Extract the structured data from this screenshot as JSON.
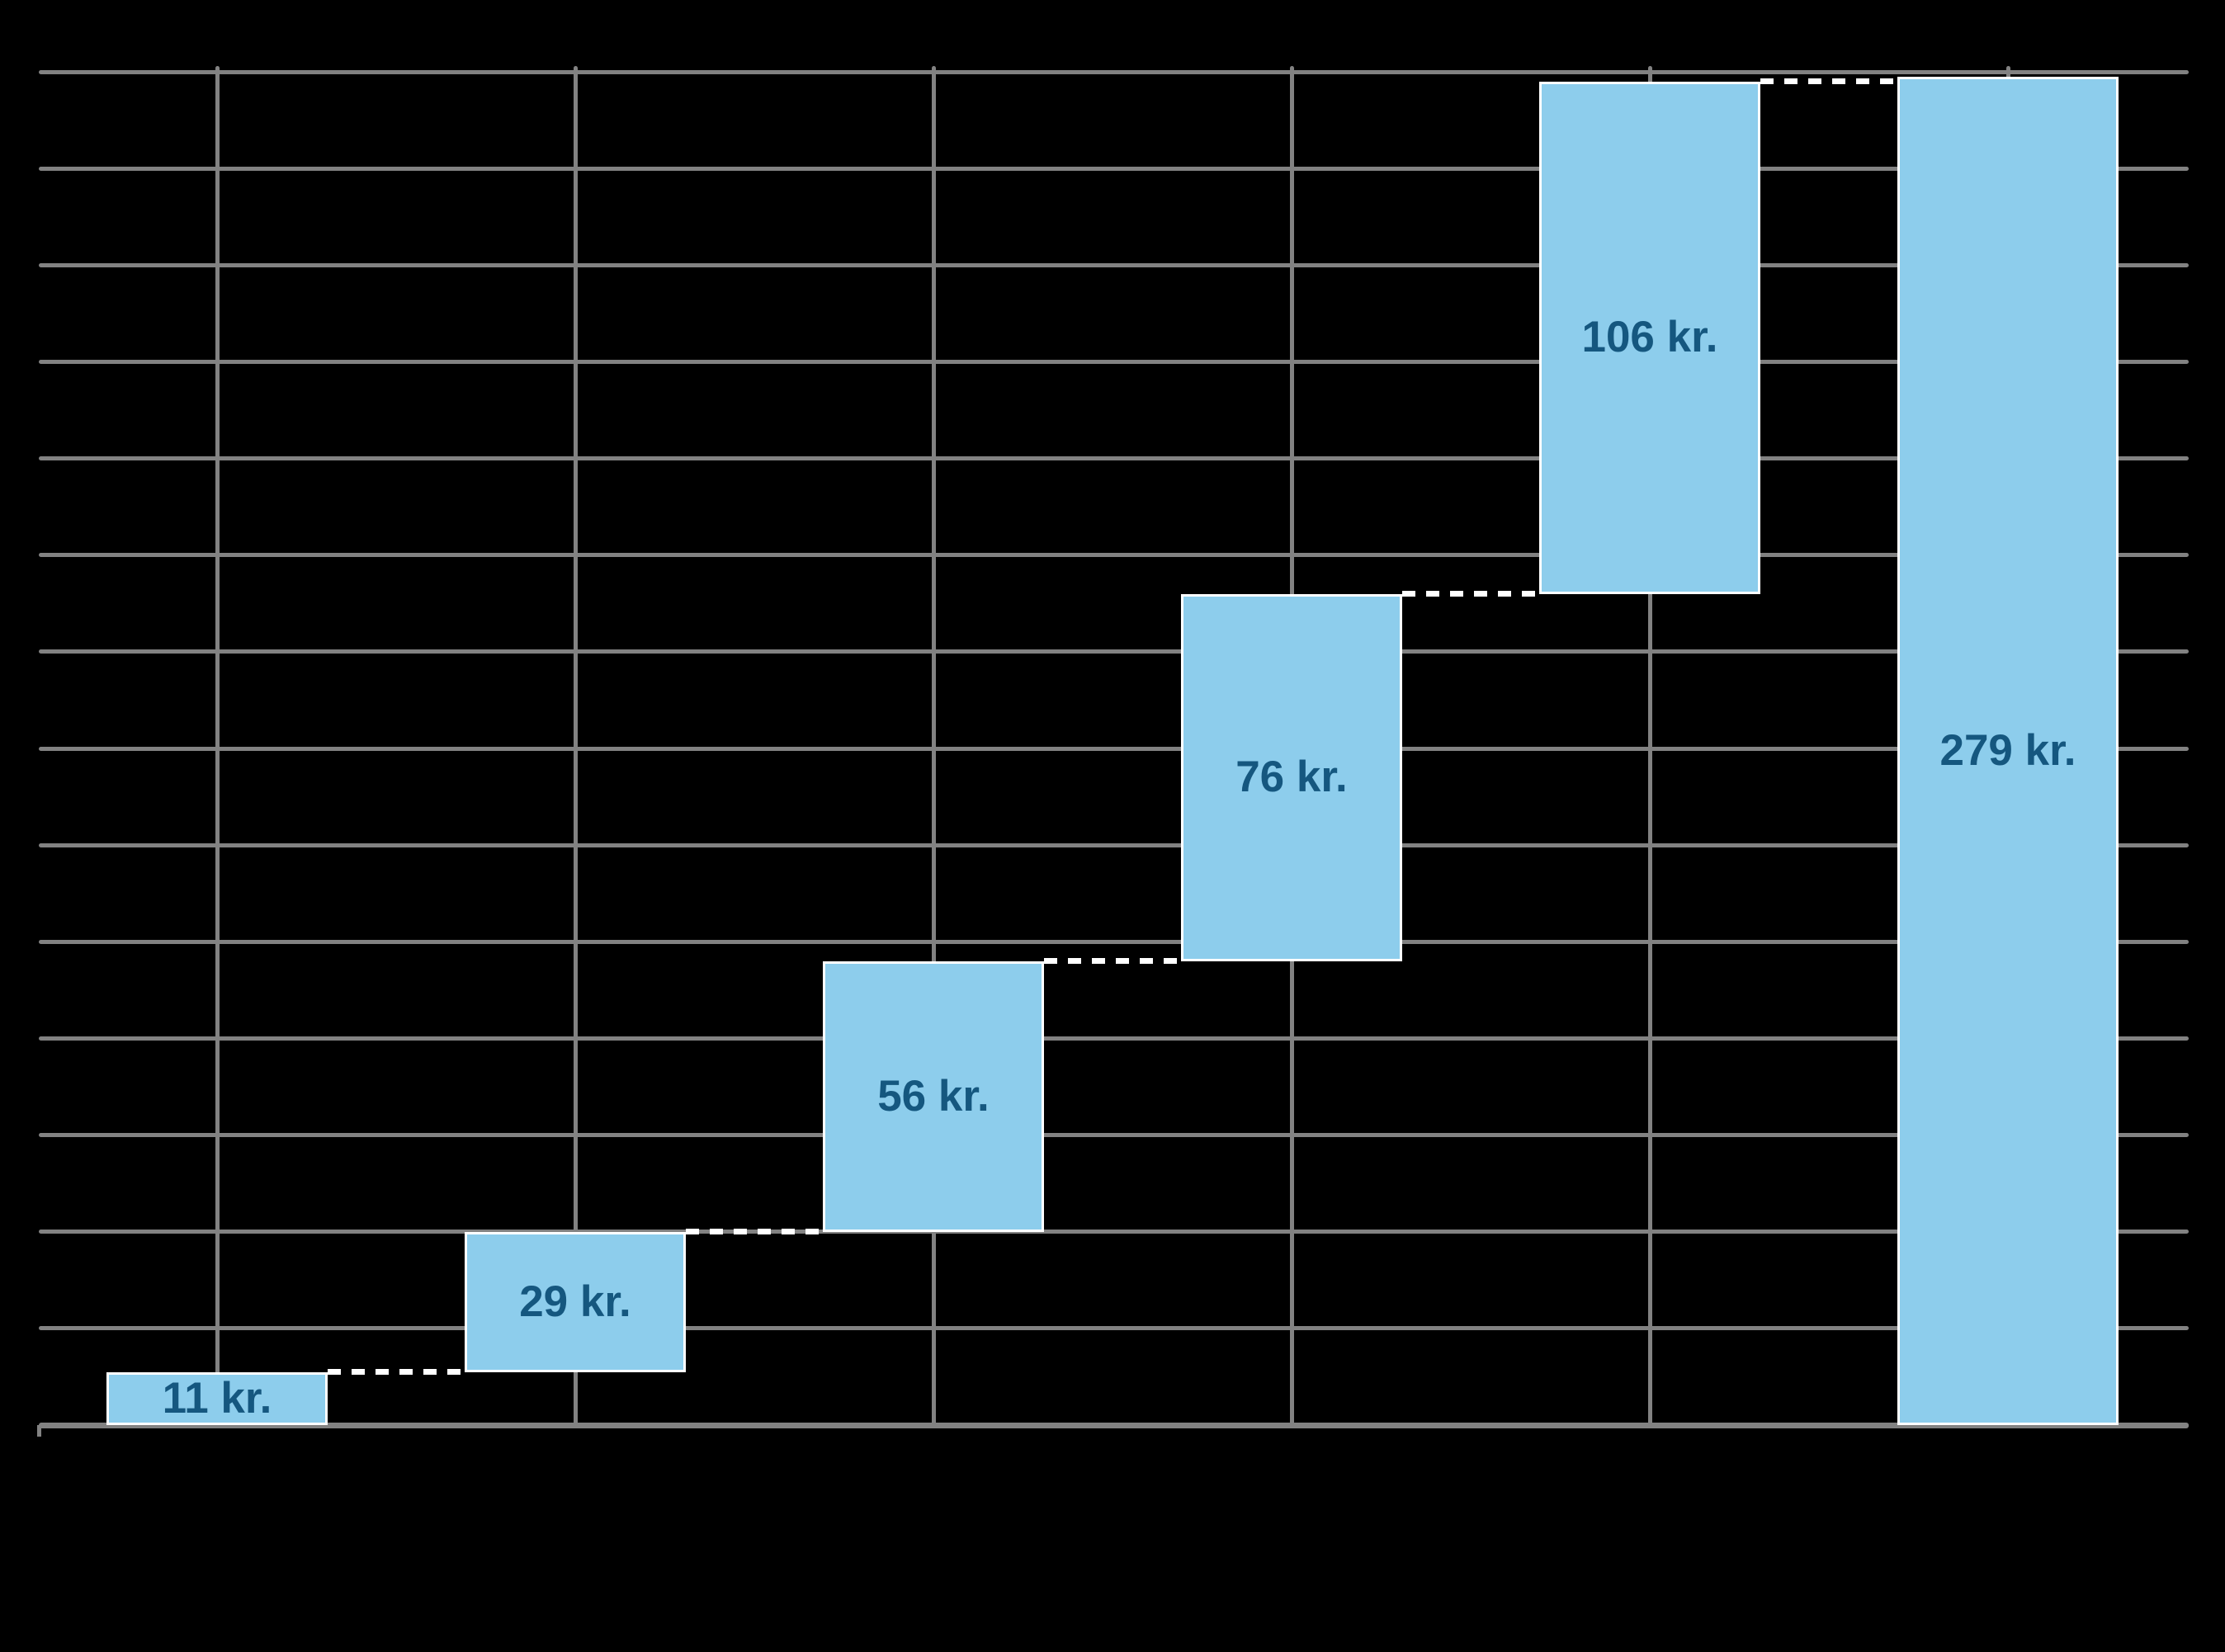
{
  "chart_data": {
    "type": "bar",
    "subtype": "waterfall",
    "unit": "kr.",
    "series": [
      {
        "label": "11 kr.",
        "value": 11,
        "kind": "step"
      },
      {
        "label": "29 kr.",
        "value": 29,
        "kind": "step"
      },
      {
        "label": "56 kr.",
        "value": 56,
        "kind": "step"
      },
      {
        "label": "76 kr.",
        "value": 76,
        "kind": "step"
      },
      {
        "label": "106 kr.",
        "value": 106,
        "kind": "step"
      },
      {
        "label": "279 kr.",
        "value": 279,
        "kind": "total"
      }
    ],
    "ylim": [
      0,
      280
    ],
    "y_gridline_interval": 20,
    "grid": true,
    "legend": "none",
    "axis_tick_labels_visible": false
  },
  "colors": {
    "background": "#000000",
    "gridline": "#828282",
    "axis": "#828282",
    "bar_fill": "#8DCDEC",
    "bar_outline": "#FFFFFF",
    "connector": "#FFFFFF",
    "label_text": "#15577F"
  }
}
